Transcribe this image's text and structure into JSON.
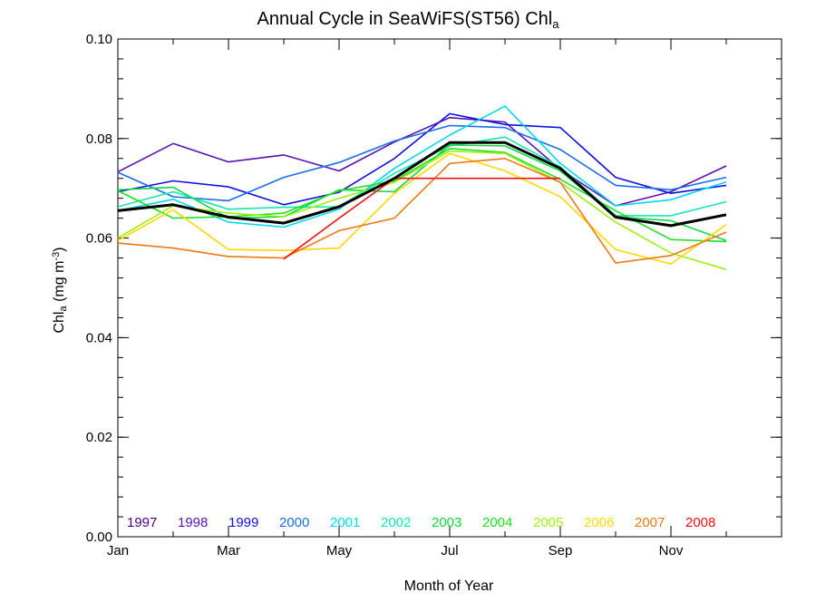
{
  "chart_data": {
    "type": "line",
    "title": "Annual Cycle in SeaWiFS(ST56) Chl",
    "title_subscript": "a",
    "xlabel": "Month of Year",
    "ylabel_main": "Chl",
    "ylabel_sub": "a",
    "ylabel_units": "(mg m",
    "ylabel_units_sup": "-3",
    "ylabel_units_close": ")",
    "x": [
      1,
      2,
      3,
      4,
      5,
      6,
      7,
      8,
      9,
      10,
      11,
      12
    ],
    "xlim": [
      1,
      13
    ],
    "ylim": [
      0,
      0.1
    ],
    "x_tick_positions": [
      1,
      3,
      5,
      7,
      9,
      11
    ],
    "x_tick_labels": [
      "Jan",
      "Mar",
      "May",
      "Jul",
      "Sep",
      "Nov"
    ],
    "y_ticks": [
      0.0,
      0.02,
      0.04,
      0.06,
      0.08,
      0.1
    ],
    "y_tick_labels": [
      "0.00",
      "0.02",
      "0.04",
      "0.06",
      "0.08",
      "0.10"
    ],
    "legend_placement": "bottom-left inside",
    "series": [
      {
        "name": "1997",
        "color": "#4b0082",
        "values": [
          null,
          null,
          null,
          null,
          null,
          null,
          null,
          null,
          null,
          null,
          null,
          null
        ]
      },
      {
        "name": "1998",
        "color": "#5a10b0",
        "values": [
          0.0733,
          0.079,
          0.0753,
          0.0767,
          0.0735,
          0.0793,
          0.0842,
          0.0833,
          0.0738,
          0.0665,
          0.0693,
          0.0745
        ]
      },
      {
        "name": "1999",
        "color": "#1010e0",
        "values": [
          0.0693,
          0.0715,
          0.0703,
          0.0667,
          0.0692,
          0.076,
          0.085,
          0.0828,
          0.0822,
          0.0722,
          0.069,
          0.0706
        ]
      },
      {
        "name": "2000",
        "color": "#1a6ee8",
        "values": [
          0.0732,
          0.0683,
          0.0675,
          0.0722,
          0.0752,
          0.0795,
          0.0826,
          0.0822,
          0.0778,
          0.0706,
          0.0697,
          0.0722
        ]
      },
      {
        "name": "2001",
        "color": "#00d8f0",
        "values": [
          0.0655,
          0.0678,
          0.0632,
          0.0622,
          0.0658,
          0.074,
          0.0807,
          0.0865,
          0.075,
          0.0665,
          0.0677,
          0.0713
        ]
      },
      {
        "name": "2002",
        "color": "#10e8b0",
        "values": [
          0.0663,
          0.0693,
          0.0658,
          0.0662,
          0.0663,
          0.073,
          0.0785,
          0.0803,
          0.0743,
          0.0645,
          0.0645,
          0.0673
        ]
      },
      {
        "name": "2003",
        "color": "#10d840",
        "values": [
          0.0697,
          0.0702,
          0.064,
          0.0643,
          0.0697,
          0.0693,
          0.0787,
          0.0785,
          0.0735,
          0.0643,
          0.0635,
          0.0595
        ]
      },
      {
        "name": "2004",
        "color": "#20e020",
        "values": [
          0.0695,
          0.064,
          0.0643,
          0.065,
          0.0695,
          0.0715,
          0.078,
          0.0772,
          0.0718,
          0.0655,
          0.0597,
          0.0593
        ]
      },
      {
        "name": "2005",
        "color": "#9ef010",
        "values": [
          0.06,
          0.0665,
          0.065,
          0.0643,
          0.068,
          0.0712,
          0.0775,
          0.077,
          0.0712,
          0.0632,
          0.057,
          0.0537
        ]
      },
      {
        "name": "2006",
        "color": "#ffd800",
        "values": [
          0.0595,
          0.0657,
          0.0577,
          0.0575,
          0.058,
          0.069,
          0.077,
          0.0735,
          0.0683,
          0.0577,
          0.0548,
          0.0627
        ]
      },
      {
        "name": "2007",
        "color": "#f07810",
        "values": [
          0.059,
          0.058,
          0.0563,
          0.056,
          0.0615,
          0.064,
          0.075,
          0.076,
          0.0712,
          0.055,
          0.0565,
          0.0612
        ]
      },
      {
        "name": "2008",
        "color": "#f01010",
        "values": [
          null,
          null,
          null,
          0.0558,
          0.064,
          0.072,
          0.072,
          0.072,
          0.072,
          null,
          null,
          null
        ]
      }
    ],
    "mean_series": {
      "color": "#000000",
      "values": [
        0.0655,
        0.0667,
        0.0642,
        0.063,
        0.0663,
        0.072,
        0.0792,
        0.0792,
        0.074,
        0.0642,
        0.0625,
        0.0647
      ]
    }
  }
}
